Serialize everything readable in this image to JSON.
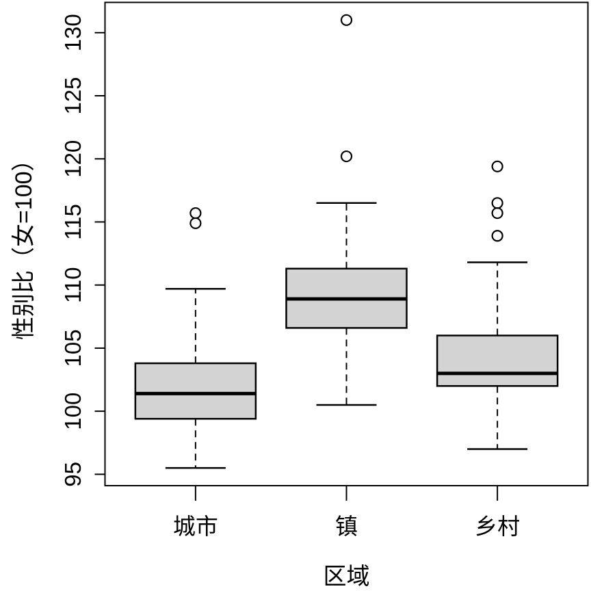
{
  "chart_data": {
    "type": "box",
    "title": "",
    "xlabel": "区域",
    "ylabel": "性别比（女=100）",
    "categories": [
      "城市",
      "镇",
      "乡村"
    ],
    "y_ticks": [
      95,
      100,
      105,
      110,
      115,
      120,
      125,
      130
    ],
    "ylim": [
      94.1,
      132.4
    ],
    "xlim": [
      0.4,
      3.6
    ],
    "series": [
      {
        "name": "城市",
        "position": 1,
        "whisker_low": 95.5,
        "q1": 99.4,
        "median": 101.4,
        "q3": 103.8,
        "whisker_high": 109.7,
        "outliers": [
          114.9,
          115.7
        ]
      },
      {
        "name": "镇",
        "position": 2,
        "whisker_low": 100.5,
        "q1": 106.6,
        "median": 108.9,
        "q3": 111.3,
        "whisker_high": 116.5,
        "outliers": [
          120.2,
          131.0
        ]
      },
      {
        "name": "乡村",
        "position": 3,
        "whisker_low": 97.0,
        "q1": 102.0,
        "median": 103.0,
        "q3": 106.0,
        "whisker_high": 111.8,
        "outliers": [
          113.9,
          115.7,
          116.5,
          119.4
        ]
      }
    ],
    "colors": {
      "box_fill": "#d3d3d3",
      "line": "#000000",
      "background": "#ffffff"
    },
    "layout": {
      "grid": false,
      "legend": false,
      "y_tick_labels_rotated": true
    }
  }
}
